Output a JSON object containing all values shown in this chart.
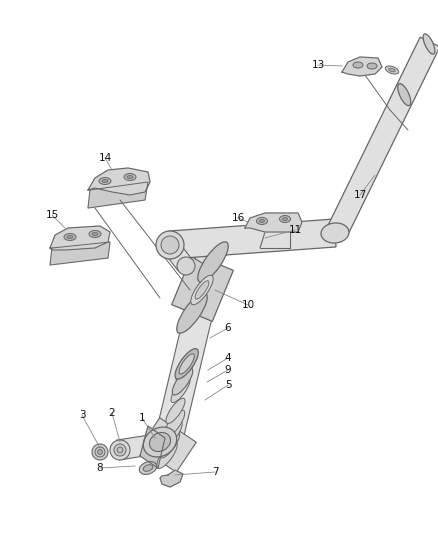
{
  "background_color": "#ffffff",
  "line_color": "#666666",
  "label_color": "#111111",
  "figsize": [
    4.38,
    5.33
  ],
  "dpi": 100,
  "label_fontsize": 7.5,
  "leader_color": "#888888",
  "leader_lw": 0.6,
  "pipe_lw": 0.9,
  "pipe_fill": "#e8e8e8",
  "bracket_fill": "#d8d8d8"
}
